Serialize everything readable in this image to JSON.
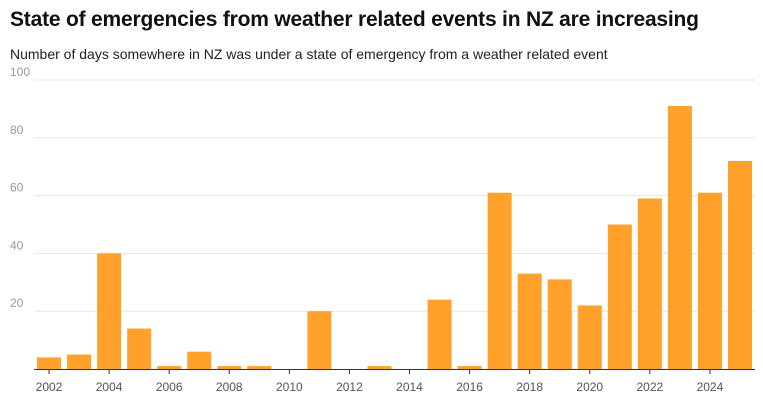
{
  "chart_data": {
    "type": "bar",
    "title": "State of emergencies from weather related events in NZ are increasing",
    "subtitle": "Number of days somewhere in NZ was under a state of emergency from a weather related event",
    "xlabel": "",
    "ylabel": "",
    "categories": [
      "2002",
      "2003",
      "2004",
      "2005",
      "2006",
      "2007",
      "2008",
      "2009",
      "2010",
      "2011",
      "2012",
      "2013",
      "2014",
      "2015",
      "2016",
      "2017",
      "2018",
      "2019",
      "2020",
      "2021",
      "2022",
      "2023",
      "2024",
      "2025"
    ],
    "values": [
      4,
      5,
      40,
      14,
      1,
      6,
      1,
      1,
      0,
      20,
      0,
      1,
      0,
      24,
      1,
      61,
      33,
      31,
      22,
      50,
      59,
      91,
      61,
      72
    ],
    "ylim": [
      0,
      100
    ],
    "yticks": [
      "20",
      "40",
      "60",
      "80",
      "100"
    ],
    "xtick_labels": [
      "2002",
      "2004",
      "2006",
      "2008",
      "2010",
      "2012",
      "2014",
      "2016",
      "2018",
      "2020",
      "2022",
      "2024"
    ],
    "grid": true,
    "bar_color": "#ffa12b"
  }
}
